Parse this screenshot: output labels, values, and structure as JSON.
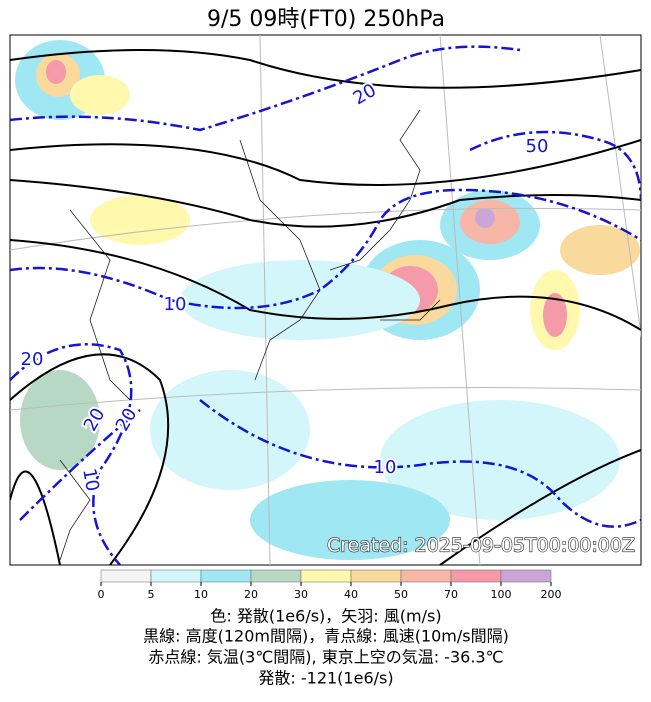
{
  "title": "9/5  09時(FT0)    250hPa",
  "map": {
    "created": "Created: 2025-09-05T00:00:00Z",
    "contour_labels": [
      "20",
      "50",
      "10",
      "20",
      "20",
      "20",
      "10",
      "10"
    ]
  },
  "colorbar": {
    "ticks": [
      "0",
      "5",
      "10",
      "20",
      "30",
      "40",
      "50",
      "70",
      "100",
      "200"
    ],
    "colors": [
      "#f4f4f4",
      "#d2f6fa",
      "#9fe7f3",
      "#b8d8c6",
      "#fff8ad",
      "#f9d99c",
      "#f7b6a6",
      "#f49aa8",
      "#caa6d8"
    ]
  },
  "caption": [
    "色: 発散(1e6/s)，矢羽: 風(m/s)",
    "黒線: 高度(120m間隔)，青点線: 風速(10m/s間隔)",
    "赤点線: 気温(3℃間隔), 東京上空の気温: -36.3℃",
    "発散: -121(1e6/s)"
  ]
}
